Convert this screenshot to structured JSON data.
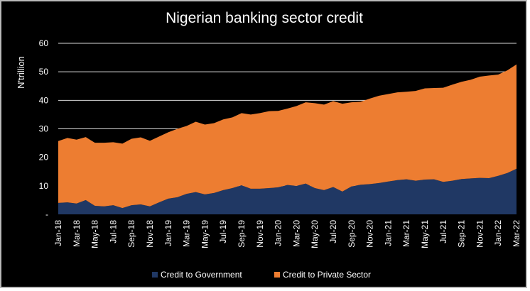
{
  "chart_data": {
    "type": "area",
    "stacked": true,
    "title": "Nigerian banking sector credit",
    "ylabel": "N'trillion",
    "xlabel": "",
    "ylim": [
      0,
      60
    ],
    "y_ticks": [
      0,
      10,
      20,
      30,
      40,
      50,
      60
    ],
    "y_tick_labels": [
      "-",
      "10",
      "20",
      "30",
      "40",
      "50",
      "60"
    ],
    "grid": "horizontal",
    "legend_position": "bottom",
    "x": [
      "Jan-18",
      "Feb-18",
      "Mar-18",
      "Apr-18",
      "May-18",
      "Jun-18",
      "Jul-18",
      "Aug-18",
      "Sep-18",
      "Oct-18",
      "Nov-18",
      "Dec-18",
      "Jan-19",
      "Feb-19",
      "Mar-19",
      "Apr-19",
      "May-19",
      "Jun-19",
      "Jul-19",
      "Aug-19",
      "Sep-19",
      "Oct-19",
      "Nov-19",
      "Dec-19",
      "Jan-20",
      "Feb-20",
      "Mar-20",
      "Apr-20",
      "May-20",
      "Jun-20",
      "Jul-20",
      "Aug-20",
      "Sep-20",
      "Oct-20",
      "Nov-20",
      "Dec-20",
      "Jan-21",
      "Feb-21",
      "Mar-21",
      "Apr-21",
      "May-21",
      "Jun-21",
      "Jul-21",
      "Aug-21",
      "Sep-21",
      "Oct-21",
      "Nov-21",
      "Dec-21",
      "Jan-22",
      "Feb-22",
      "Mar-22"
    ],
    "x_tick_labels": [
      "Jan-18",
      "Mar-18",
      "May-18",
      "Jul-18",
      "Sep-18",
      "Nov-18",
      "Jan-19",
      "Mar-19",
      "May-19",
      "Jul-19",
      "Sep-19",
      "Nov-19",
      "Jan-20",
      "Mar-20",
      "May-20",
      "Jul-20",
      "Sep-20",
      "Nov-20",
      "Jan-21",
      "Mar-21",
      "May-21",
      "Jul-21",
      "Sep-21",
      "Nov-21",
      "Jan-22",
      "Mar-22"
    ],
    "series": [
      {
        "name": "Credit to Government",
        "color": "#203864",
        "values": [
          4.0,
          4.2,
          3.8,
          5.0,
          3.0,
          2.8,
          3.2,
          2.2,
          3.2,
          3.5,
          2.8,
          4.2,
          5.5,
          6.0,
          7.2,
          7.8,
          7.0,
          7.5,
          8.5,
          9.2,
          10.2,
          9.0,
          9.0,
          9.2,
          9.5,
          10.3,
          10.0,
          10.8,
          9.2,
          8.5,
          9.6,
          8.0,
          9.8,
          10.4,
          10.6,
          11.0,
          11.5,
          12.0,
          12.3,
          11.8,
          12.2,
          12.3,
          11.4,
          11.8,
          12.4,
          12.6,
          12.8,
          12.7,
          13.5,
          14.5,
          16.0
        ]
      },
      {
        "name": "Credit to Private Sector",
        "color": "#ed7d31",
        "values": [
          21.7,
          22.6,
          22.4,
          22.1,
          22.1,
          22.3,
          22.1,
          22.6,
          23.3,
          23.5,
          23.0,
          23.1,
          23.3,
          24.0,
          23.8,
          24.7,
          24.5,
          24.5,
          24.8,
          24.8,
          25.3,
          26.0,
          26.5,
          27.0,
          26.8,
          26.8,
          28.0,
          28.5,
          29.8,
          30.0,
          30.1,
          30.8,
          29.5,
          29.1,
          30.0,
          30.6,
          30.7,
          30.8,
          30.7,
          31.5,
          32.0,
          32.0,
          33.0,
          33.7,
          34.1,
          34.6,
          35.5,
          36.0,
          35.5,
          36.0,
          36.6
        ]
      }
    ]
  }
}
